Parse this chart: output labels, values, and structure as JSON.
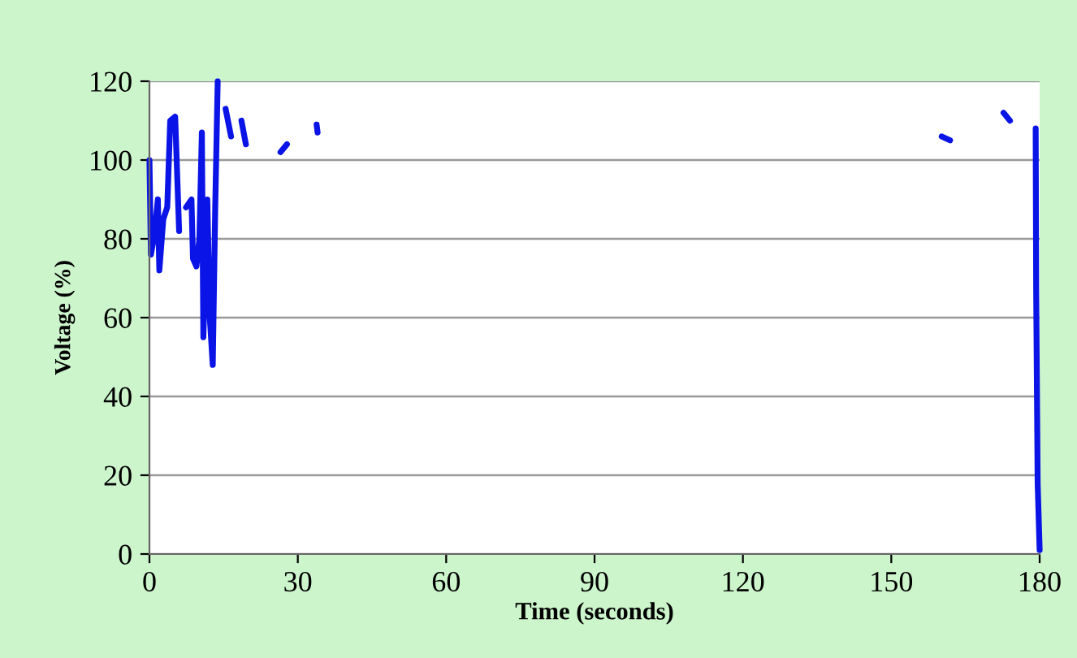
{
  "chart_data": {
    "type": "line",
    "xlabel": "Time (seconds)",
    "ylabel": "Voltage (%)",
    "xlim": [
      0,
      180
    ],
    "xticks": [
      0,
      30,
      60,
      90,
      120,
      150,
      180
    ],
    "ylim": [
      0,
      120
    ],
    "yticks": [
      0,
      20,
      40,
      60,
      80,
      100,
      120
    ],
    "grid": "y",
    "marker": "none",
    "line_style": "solid",
    "series": [
      {
        "color": "#0a14e6",
        "x": [
          0,
          0.3,
          1.0,
          1.7,
          2.0,
          2.8,
          3.6,
          4.2,
          5.2,
          6.0,
          6.1,
          7.4,
          8.5,
          8.8,
          9.5,
          10.1,
          10.6,
          10.9,
          11.7,
          12.2,
          12.8,
          13.3,
          13.8,
          13.9,
          15.4,
          16.5,
          16.6,
          18.6,
          19.5,
          19.6,
          26.5,
          27.8,
          27.9,
          33.8,
          34.0,
          34.1,
          160.2,
          161.9,
          162.0,
          172.7,
          174.0,
          174.1,
          179.2,
          179.3,
          179.6,
          180
        ],
        "values": [
          100,
          76,
          81,
          90,
          72,
          85,
          88,
          110,
          111,
          82,
          null,
          88,
          90,
          75,
          73,
          80,
          107,
          55,
          90,
          60,
          48,
          88,
          120,
          null,
          113,
          106,
          null,
          110,
          104,
          null,
          102,
          104,
          null,
          109,
          107,
          null,
          106,
          105,
          null,
          112,
          110,
          null,
          108,
          67,
          18,
          1
        ]
      }
    ]
  }
}
